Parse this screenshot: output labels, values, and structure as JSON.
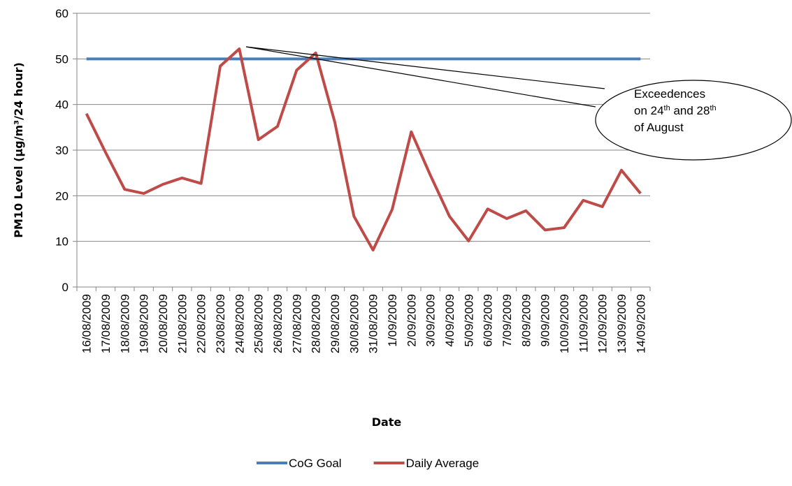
{
  "chart_data": {
    "type": "line",
    "x_label": "Date",
    "y_label": "PM10 Level (µg/m³/24 hour)",
    "categories": [
      "16/08/2009",
      "17/08/2009",
      "18/08/2009",
      "19/08/2009",
      "20/08/2009",
      "21/08/2009",
      "22/08/2009",
      "23/08/2009",
      "24/08/2009",
      "25/08/2009",
      "26/08/2009",
      "27/08/2009",
      "28/08/2009",
      "29/08/2009",
      "30/08/2009",
      "31/08/2009",
      "1/09/2009",
      "2/09/2009",
      "3/09/2009",
      "4/09/2009",
      "5/09/2009",
      "6/09/2009",
      "7/09/2009",
      "8/09/2009",
      "9/09/2009",
      "10/09/2009",
      "11/09/2009",
      "12/09/2009",
      "13/09/2009",
      "14/09/2009"
    ],
    "series": [
      {
        "name": "CoG Goal",
        "color": "#4a7ebb",
        "values": [
          50,
          50,
          50,
          50,
          50,
          50,
          50,
          50,
          50,
          50,
          50,
          50,
          50,
          50,
          50,
          50,
          50,
          50,
          50,
          50,
          50,
          50,
          50,
          50,
          50,
          50,
          50,
          50,
          50,
          50
        ]
      },
      {
        "name": "Daily Average",
        "color": "#be4b48",
        "values": [
          38,
          29.5,
          21.4,
          20.5,
          22.5,
          23.9,
          22.7,
          48.4,
          52.2,
          32.3,
          35.2,
          47.5,
          51.3,
          36.1,
          15.5,
          8.1,
          17,
          34,
          24.5,
          15.5,
          10.1,
          17.1,
          15,
          16.7,
          12.5,
          13,
          19,
          17.6,
          25.6,
          20.5
        ]
      }
    ],
    "ylim": [
      0,
      60
    ],
    "yticks": [
      0,
      10,
      20,
      30,
      40,
      50,
      60
    ],
    "grid": true,
    "legend": "bottom",
    "annotation": {
      "lines": [
        [
          "Exceedences"
        ],
        [
          "on 24",
          "th",
          " and 28",
          "th"
        ],
        [
          "of August"
        ]
      ]
    }
  }
}
